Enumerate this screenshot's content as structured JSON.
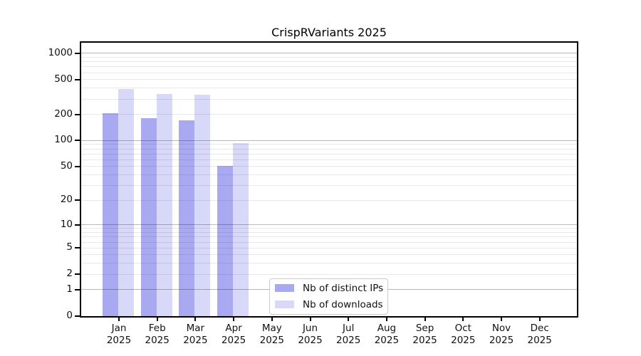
{
  "chart_data": {
    "type": "bar",
    "title": "CrispRVariants 2025",
    "y_scale": "log1p",
    "ylim": [
      0,
      1320
    ],
    "grid": true,
    "legend_position": "lower-center",
    "axis_color": "#000000",
    "grid_major_color": "rgba(0,0,0,0.28)",
    "grid_minor_color": "rgba(0,0,0,0.09)",
    "y_ticks": [
      0,
      1,
      2,
      5,
      10,
      20,
      50,
      100,
      200,
      500,
      1000
    ],
    "y_tick_labels": [
      "0",
      "1",
      "2",
      "5",
      "10",
      "20",
      "50",
      "100",
      "200",
      "500",
      "1000"
    ],
    "y_grid_major": [
      1,
      10,
      100,
      1000
    ],
    "y_grid_minor": [
      2,
      3,
      4,
      5,
      6,
      7,
      8,
      9,
      20,
      30,
      40,
      50,
      60,
      70,
      80,
      90,
      200,
      300,
      400,
      500,
      600,
      700,
      800,
      900
    ],
    "x_categories": [
      {
        "month": "Jan",
        "year": "2025"
      },
      {
        "month": "Feb",
        "year": "2025"
      },
      {
        "month": "Mar",
        "year": "2025"
      },
      {
        "month": "Apr",
        "year": "2025"
      },
      {
        "month": "May",
        "year": "2025"
      },
      {
        "month": "Jun",
        "year": "2025"
      },
      {
        "month": "Jul",
        "year": "2025"
      },
      {
        "month": "Aug",
        "year": "2025"
      },
      {
        "month": "Sep",
        "year": "2025"
      },
      {
        "month": "Oct",
        "year": "2025"
      },
      {
        "month": "Nov",
        "year": "2025"
      },
      {
        "month": "Dec",
        "year": "2025"
      }
    ],
    "series": [
      {
        "name": "Nb of distinct IPs",
        "slug": "distinct-ips",
        "color": "#a9a9f2",
        "values": [
          205,
          182,
          171,
          51,
          null,
          null,
          null,
          null,
          null,
          null,
          null,
          null
        ]
      },
      {
        "name": "Nb of downloads",
        "slug": "downloads",
        "color": "#d8d8f8",
        "values": [
          392,
          342,
          334,
          93,
          null,
          null,
          null,
          null,
          null,
          null,
          null,
          null
        ]
      }
    ]
  }
}
